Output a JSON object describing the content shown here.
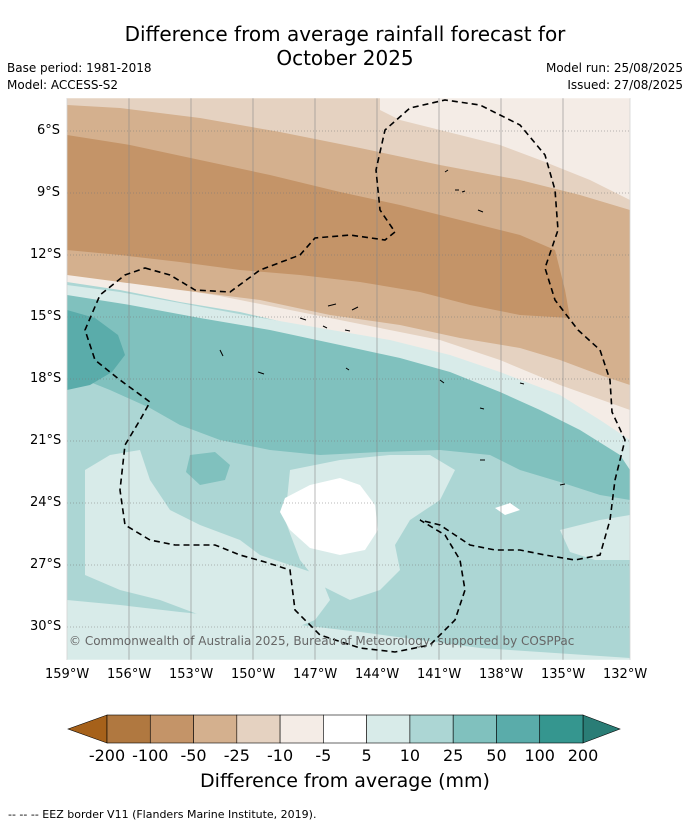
{
  "title_line1": "Difference from average rainfall forecast for",
  "title_line2": "October 2025",
  "base_period": "Base period: 1981-2018",
  "model": "Model: ACCESS-S2",
  "model_run": "Model run: 25/08/2025",
  "issued": "Issued: 27/08/2025",
  "copyright": "© Commonwealth of Australia 2025, Bureau of Meteorology, supported by COSPPac",
  "lat_labels": [
    "6°S",
    "9°S",
    "12°S",
    "15°S",
    "18°S",
    "21°S",
    "24°S",
    "27°S",
    "30°S"
  ],
  "lon_labels": [
    "159°W",
    "156°W",
    "153°W",
    "150°W",
    "147°W",
    "144°W",
    "141°W",
    "138°W",
    "135°W",
    "132°W"
  ],
  "colorbar": {
    "title": "Difference from average (mm)",
    "tick_labels": [
      "-200",
      "-100",
      "-50",
      "-25",
      "-10",
      "-5",
      "5",
      "10",
      "25",
      "50",
      "100",
      "200"
    ],
    "colors": [
      "#a6611a",
      "#b07840",
      "#c49468",
      "#d4b08e",
      "#e5d2c1",
      "#f4ece6",
      "#ffffff",
      "#d8ebe9",
      "#acd6d4",
      "#80c1be",
      "#5aacaa",
      "#35968f",
      "#2a7d76"
    ]
  },
  "footer": "--  --  -- EEZ border V11 (Flanders Marine Institute, 2019)."
}
